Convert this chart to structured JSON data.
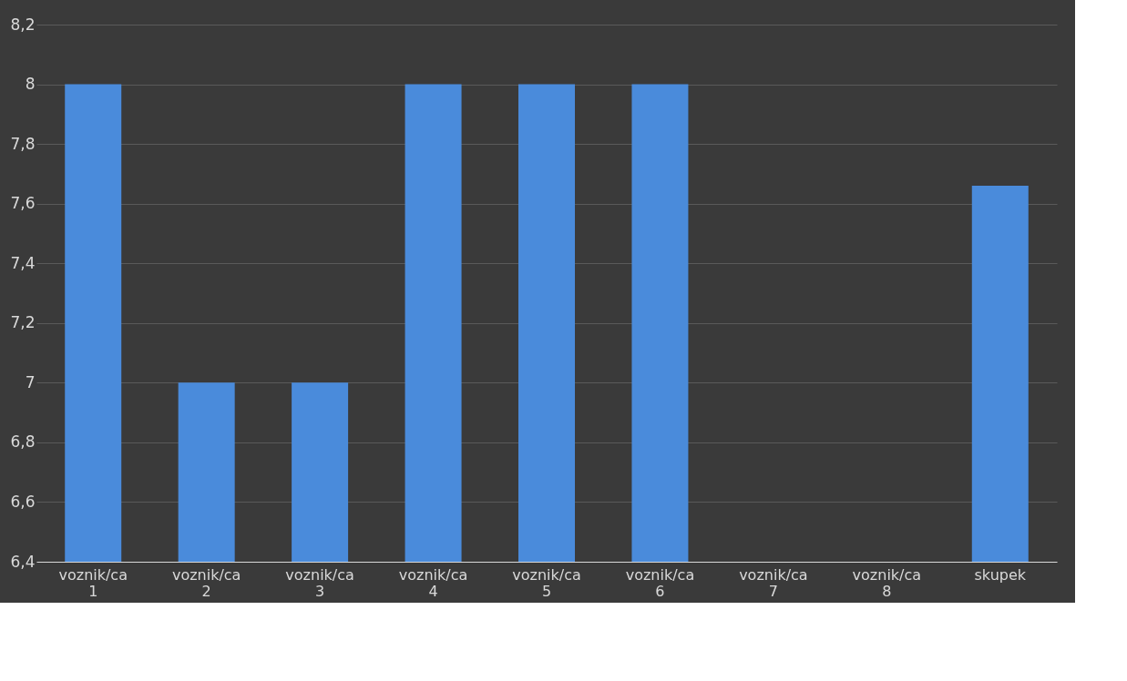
{
  "chart_data": {
    "type": "bar",
    "categories": [
      "voznik/ca 1",
      "voznik/ca 2",
      "voznik/ca 3",
      "voznik/ca 4",
      "voznik/ca 5",
      "voznik/ca 6",
      "voznik/ca 7",
      "voznik/ca 8",
      "skupek"
    ],
    "values": [
      8,
      7,
      7,
      8,
      8,
      8,
      null,
      null,
      7.66
    ],
    "color": "#4a8bdb",
    "ylim": [
      6.4,
      8.2
    ],
    "yticks": [
      {
        "value": 6.4,
        "label": "6,4"
      },
      {
        "value": 6.6,
        "label": "6,6"
      },
      {
        "value": 6.8,
        "label": "6,8"
      },
      {
        "value": 7,
        "label": "7"
      },
      {
        "value": 7.2,
        "label": "7,2"
      },
      {
        "value": 7.4,
        "label": "7,4"
      },
      {
        "value": 7.6,
        "label": "7,6"
      },
      {
        "value": 7.8,
        "label": "7,8"
      },
      {
        "value": 8,
        "label": "8"
      },
      {
        "value": 8.2,
        "label": "8,2"
      }
    ],
    "grid": "y"
  }
}
